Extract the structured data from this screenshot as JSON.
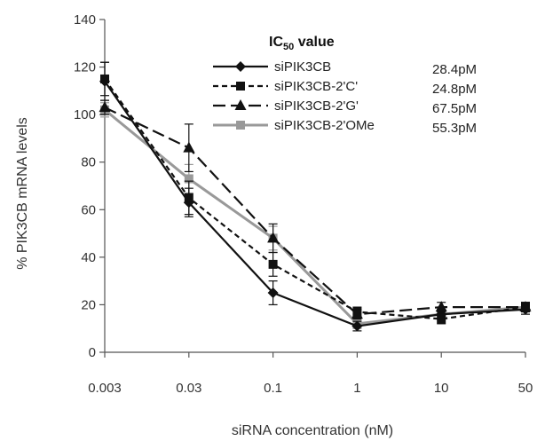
{
  "chart_data": {
    "type": "line",
    "title": "",
    "xlabel": "siRNA concentration  (nM)",
    "ylabel": "% PIK3CB mRNA levels",
    "x_scale": "log",
    "x": [
      0.003,
      0.03,
      0.1,
      1,
      10,
      50
    ],
    "x_tick_labels": [
      "0.003",
      "0.03",
      "0.1",
      "1",
      "10",
      "50"
    ],
    "ylim": [
      0,
      140
    ],
    "y_ticks": [
      0,
      20,
      40,
      60,
      80,
      100,
      120,
      140
    ],
    "grid": false,
    "legend_position": "top-right",
    "legend_title": {
      "prefix": "IC",
      "subscript": "50",
      "suffix": " value"
    },
    "series": [
      {
        "name": "siPIK3CB",
        "ic50": "28.4pM",
        "color": "#111111",
        "dash": "solid",
        "marker": "diamond",
        "values": [
          114,
          63,
          25,
          11,
          16,
          18
        ],
        "errors": [
          8,
          6,
          5,
          2,
          2,
          2
        ]
      },
      {
        "name": "siPIK3CB-2'C'",
        "ic50": "24.8pM",
        "color": "#111111",
        "dash": "short-dash",
        "marker": "square",
        "values": [
          115,
          65,
          37,
          17,
          14,
          19
        ],
        "errors": [
          7,
          7,
          5,
          2,
          2,
          2
        ]
      },
      {
        "name": "siPIK3CB-2'G'",
        "ic50": "67.5pM",
        "color": "#111111",
        "dash": "long-dash",
        "marker": "triangle",
        "values": [
          103,
          86,
          48,
          16,
          19,
          19
        ],
        "errors": [
          3,
          10,
          6,
          2,
          2,
          2
        ]
      },
      {
        "name": "siPIK3CB-2'OMe",
        "ic50": "55.3pM",
        "color": "#999999",
        "dash": "solid",
        "marker": "square",
        "values": [
          102,
          73,
          48,
          12,
          16,
          19
        ],
        "errors": [
          3,
          6,
          5,
          2,
          2,
          2
        ]
      }
    ]
  }
}
